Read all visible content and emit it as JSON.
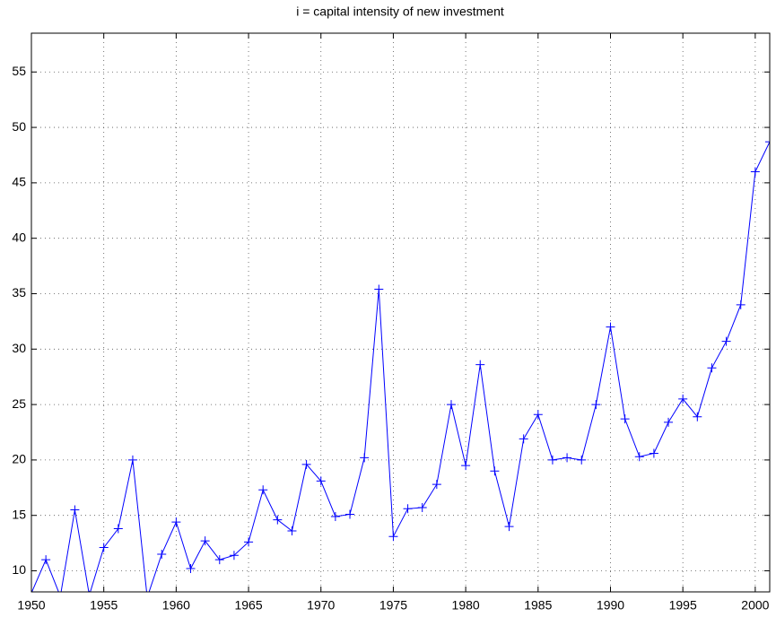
{
  "chart_data": {
    "type": "line",
    "title": "i = capital intensity of new investment",
    "x": [
      1950,
      1951,
      1952,
      1953,
      1954,
      1955,
      1956,
      1957,
      1958,
      1959,
      1960,
      1961,
      1962,
      1963,
      1964,
      1965,
      1966,
      1967,
      1968,
      1969,
      1970,
      1971,
      1972,
      1973,
      1974,
      1975,
      1976,
      1977,
      1978,
      1979,
      1980,
      1981,
      1982,
      1983,
      1984,
      1985,
      1986,
      1987,
      1988,
      1989,
      1990,
      1991,
      1992,
      1993,
      1994,
      1995,
      1996,
      1997,
      1998,
      1999,
      2000,
      2001
    ],
    "series": [
      {
        "color": "#0000ff",
        "marker": "+",
        "values": [
          8.0,
          11.0,
          7.7,
          15.5,
          7.8,
          12.1,
          13.8,
          20.0,
          7.6,
          11.5,
          14.4,
          10.2,
          12.7,
          11.0,
          11.4,
          12.6,
          17.3,
          14.6,
          13.6,
          19.6,
          18.1,
          14.9,
          15.1,
          20.2,
          35.4,
          13.1,
          15.6,
          15.7,
          17.8,
          25.0,
          19.5,
          28.6,
          19.0,
          14.0,
          21.9,
          24.1,
          20.0,
          20.2,
          20.0,
          25.0,
          32.0,
          23.7,
          20.3,
          20.6,
          23.4,
          25.5,
          23.9,
          28.3,
          30.7,
          34.0,
          46.0,
          48.7
        ]
      }
    ],
    "xlim": [
      1950,
      2001
    ],
    "xticks": [
      1950,
      1955,
      1960,
      1965,
      1970,
      1975,
      1980,
      1985,
      1990,
      1995,
      2000
    ],
    "ylim": [
      8.1,
      58.5
    ],
    "yticks": [
      10,
      15,
      20,
      25,
      30,
      35,
      40,
      45,
      50,
      55
    ],
    "grid": true
  }
}
